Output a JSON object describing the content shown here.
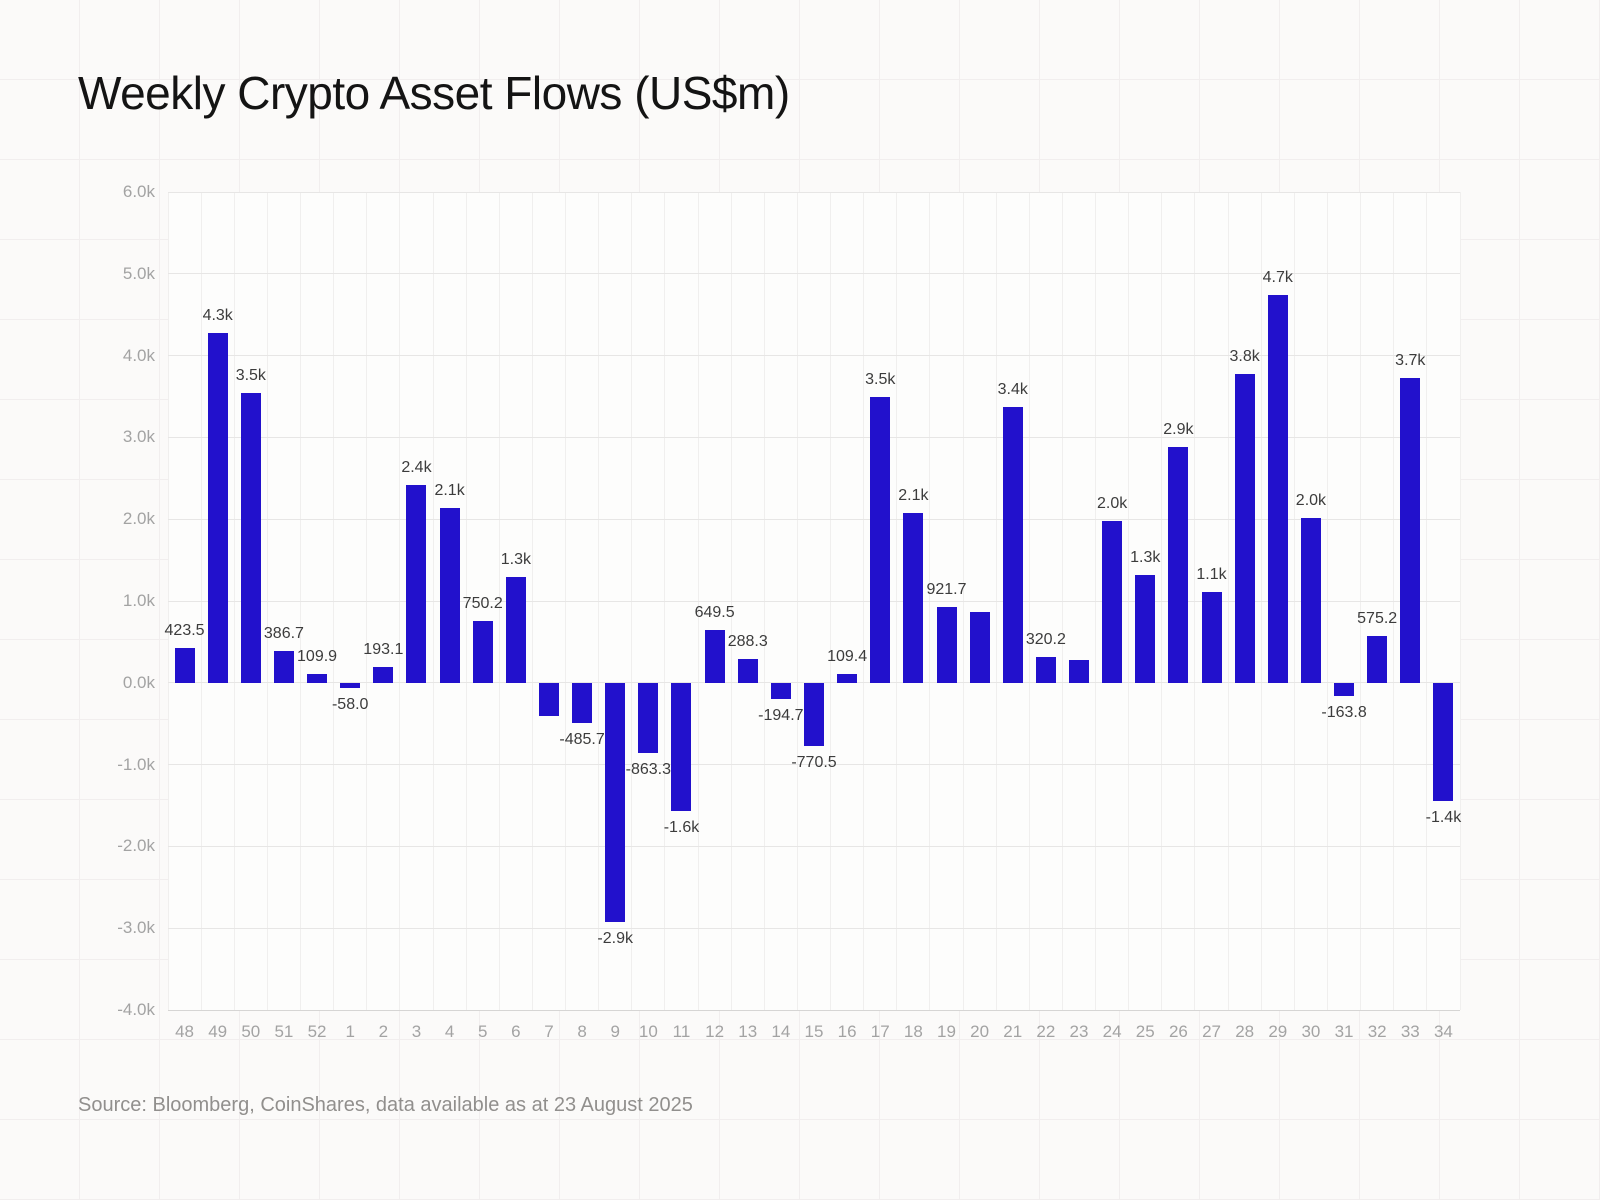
{
  "page": {
    "title": "Weekly Crypto Asset Flows (US$m)",
    "source": "Source: Bloomberg, CoinShares, data available as at 23 August 2025"
  },
  "colors": {
    "bar": "#2211cc",
    "page_background": "#fbfaf9",
    "page_grid": "#f1eeee",
    "plot_background": "#fdfdfc",
    "h_gridline": "#e7e6e5",
    "v_gridline": "#f0efee",
    "axis_line": "#d6d5d4",
    "tick_label": "#a3a3a3",
    "value_label": "#3c3c3c",
    "title": "#141414",
    "source": "#918f8d"
  },
  "chart_data": {
    "type": "bar",
    "title": "Weekly Crypto Asset Flows (US$m)",
    "xlabel": "",
    "ylabel": "",
    "categories": [
      "48",
      "49",
      "50",
      "51",
      "52",
      "1",
      "2",
      "3",
      "4",
      "5",
      "6",
      "7",
      "8",
      "9",
      "10",
      "11",
      "12",
      "13",
      "14",
      "15",
      "16",
      "17",
      "18",
      "19",
      "20",
      "21",
      "22",
      "23",
      "24",
      "25",
      "26",
      "27",
      "28",
      "29",
      "30",
      "31",
      "32",
      "33",
      "34"
    ],
    "values": [
      423.5,
      4280,
      3540,
      386.7,
      109.9,
      -58.0,
      193.1,
      2420,
      2140,
      750.2,
      1290,
      -400,
      -485.7,
      -2930,
      -863.3,
      -1570,
      649.5,
      288.3,
      -194.7,
      -770.5,
      109.4,
      3500,
      2070,
      921.7,
      870,
      3370,
      320.2,
      280,
      1980,
      1320,
      2880,
      1110,
      3770,
      4740,
      2020,
      -163.8,
      575.2,
      3730,
      -1440
    ],
    "labels": [
      "423.5",
      "4.3k",
      "3.5k",
      "386.7",
      "109.9",
      "-58.0",
      "193.1",
      "2.4k",
      "2.1k",
      "750.2",
      "1.3k",
      "",
      "-485.7",
      "-2.9k",
      "-863.3",
      "-1.6k",
      "649.5",
      "288.3",
      "-194.7",
      "-770.5",
      "109.4",
      "3.5k",
      "2.1k",
      "921.7",
      "",
      "3.4k",
      "320.2",
      "",
      "2.0k",
      "1.3k",
      "2.9k",
      "1.1k",
      "3.8k",
      "4.7k",
      "2.0k",
      "-163.8",
      "575.2",
      "3.7k",
      "-1.4k"
    ],
    "ylim": [
      -4000,
      6000
    ],
    "ytick_step": 1000,
    "ytick_labels": [
      "6.0k",
      "5.0k",
      "4.0k",
      "3.0k",
      "2.0k",
      "1.0k",
      "0.0k",
      "-1.0k",
      "-2.0k",
      "-3.0k",
      "-4.0k"
    ],
    "grid": true,
    "legend_position": "none",
    "source": "Source: Bloomberg, CoinShares, data available as at 23 August 2025"
  }
}
